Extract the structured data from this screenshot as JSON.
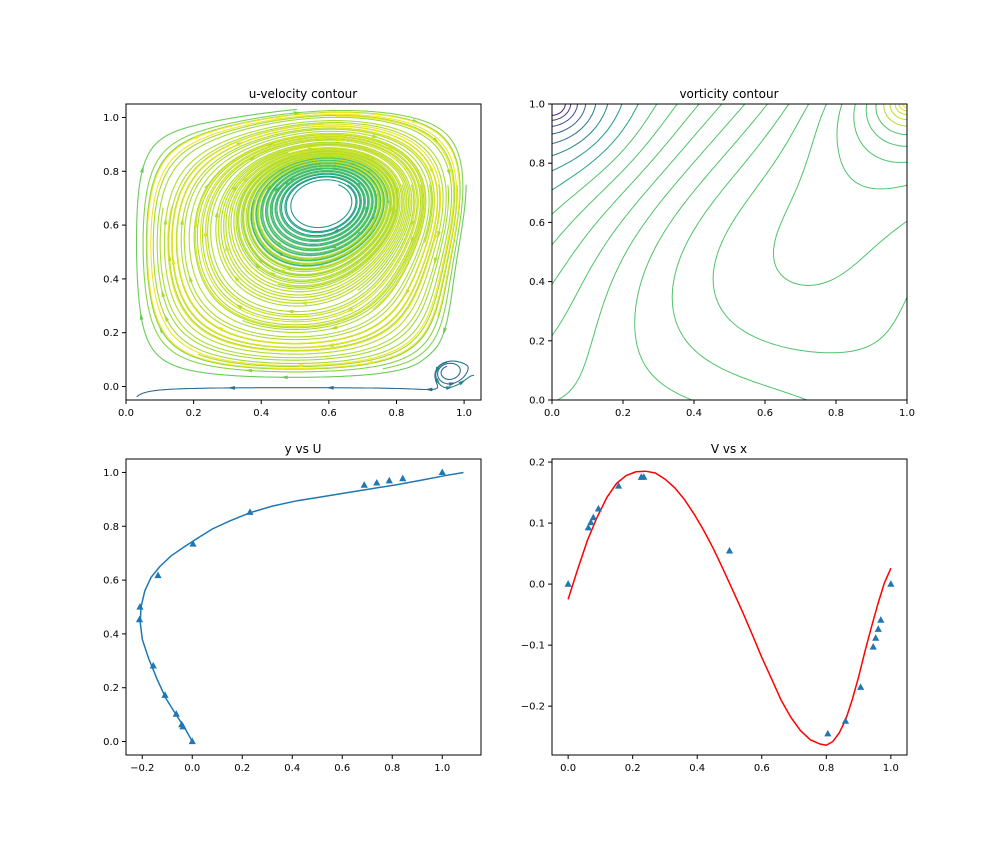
{
  "colors": {
    "viridis": [
      "#440154",
      "#482475",
      "#414487",
      "#355f8d",
      "#2a788e",
      "#21918c",
      "#22a884",
      "#44bf70",
      "#7ad151",
      "#bddf26",
      "#fde725"
    ],
    "scatter_blue": "#1f77b4",
    "line_blue": "#1f77b4",
    "fit_red": "#ff0000",
    "vorticity_green": "#5ec962"
  },
  "chart_data": [
    {
      "type": "streamplot",
      "title": "u-velocity contour",
      "xlabel": "",
      "ylabel": "",
      "xlim": [
        0,
        1.05
      ],
      "ylim": [
        -0.05,
        1.05
      ],
      "xticks": [
        "0.0",
        "0.2",
        "0.4",
        "0.6",
        "0.8",
        "1.0"
      ],
      "yticks": [
        "0.0",
        "0.2",
        "0.4",
        "0.6",
        "0.8",
        "1.0"
      ],
      "vortex_center": [
        0.62,
        0.75
      ],
      "secondary_vortex": [
        0.95,
        0.06
      ]
    },
    {
      "type": "contour",
      "title": "vorticity contour",
      "xlabel": "",
      "ylabel": "",
      "xlim": [
        0,
        1
      ],
      "ylim": [
        0,
        1
      ],
      "xticks": [
        "0.0",
        "0.2",
        "0.4",
        "0.6",
        "0.8",
        "1.0"
      ],
      "yticks": [
        "0.0",
        "0.2",
        "0.4",
        "0.6",
        "0.8",
        "1.0"
      ]
    },
    {
      "type": "line",
      "title": "y vs U",
      "xlabel": "",
      "ylabel": "",
      "xlim": [
        -0.265,
        1.155
      ],
      "ylim": [
        -0.05,
        1.05
      ],
      "xticks": [
        "−0.2",
        "0.0",
        "0.2",
        "0.4",
        "0.6",
        "0.8",
        "1.0"
      ],
      "yticks": [
        "0.0",
        "0.2",
        "0.4",
        "0.6",
        "0.8",
        "1.0"
      ],
      "series": [
        {
          "kind": "line",
          "x": [
            0.0,
            -0.03,
            -0.065,
            -0.105,
            -0.14,
            -0.175,
            -0.2,
            -0.208,
            -0.205,
            -0.19,
            -0.165,
            -0.13,
            -0.085,
            -0.03,
            0.02,
            0.08,
            0.15,
            0.23,
            0.32,
            0.42,
            0.52,
            0.62,
            0.72,
            0.82,
            0.92,
            1.01,
            1.085
          ],
          "y": [
            0.0,
            0.05,
            0.1,
            0.16,
            0.23,
            0.31,
            0.38,
            0.44,
            0.5,
            0.56,
            0.61,
            0.65,
            0.69,
            0.725,
            0.755,
            0.79,
            0.82,
            0.85,
            0.875,
            0.895,
            0.91,
            0.925,
            0.94,
            0.955,
            0.972,
            0.988,
            1.0
          ]
        },
        {
          "kind": "scatter",
          "x": [
            0.0,
            -0.037,
            -0.042,
            -0.064,
            -0.109,
            -0.156,
            -0.211,
            -0.209,
            -0.137,
            0.003,
            0.231,
            0.688,
            0.738,
            0.788,
            0.842,
            1.0
          ],
          "y": [
            0.0,
            0.055,
            0.063,
            0.102,
            0.172,
            0.281,
            0.453,
            0.5,
            0.617,
            0.734,
            0.852,
            0.953,
            0.961,
            0.969,
            0.977,
            1.0
          ]
        }
      ]
    },
    {
      "type": "line",
      "title": "V vs x",
      "xlabel": "",
      "ylabel": "",
      "xlim": [
        -0.05,
        1.05
      ],
      "ylim": [
        -0.28,
        0.205
      ],
      "xticks": [
        "0.0",
        "0.2",
        "0.4",
        "0.6",
        "0.8",
        "1.0"
      ],
      "yticks": [
        "−0.2",
        "−0.1",
        "0.0",
        "0.1",
        "0.2"
      ],
      "series": [
        {
          "kind": "line",
          "x": [
            0.0,
            0.03,
            0.06,
            0.09,
            0.12,
            0.15,
            0.18,
            0.21,
            0.24,
            0.27,
            0.3,
            0.33,
            0.36,
            0.39,
            0.42,
            0.45,
            0.48,
            0.51,
            0.54,
            0.57,
            0.6,
            0.63,
            0.66,
            0.69,
            0.72,
            0.75,
            0.78,
            0.8,
            0.82,
            0.84,
            0.86,
            0.88,
            0.9,
            0.92,
            0.94,
            0.96,
            0.98,
            1.0
          ],
          "y": [
            -0.025,
            0.025,
            0.072,
            0.11,
            0.142,
            0.165,
            0.178,
            0.184,
            0.185,
            0.182,
            0.172,
            0.158,
            0.139,
            0.115,
            0.088,
            0.058,
            0.025,
            -0.01,
            -0.045,
            -0.082,
            -0.12,
            -0.155,
            -0.19,
            -0.218,
            -0.24,
            -0.255,
            -0.262,
            -0.264,
            -0.258,
            -0.244,
            -0.222,
            -0.19,
            -0.152,
            -0.11,
            -0.07,
            -0.032,
            0.002,
            0.026
          ]
        },
        {
          "kind": "scatter",
          "x": [
            0.0,
            0.0625,
            0.0703,
            0.0781,
            0.0938,
            0.1563,
            0.2266,
            0.2344,
            0.5,
            0.8047,
            0.8594,
            0.9063,
            0.9453,
            0.9531,
            0.9609,
            0.9688,
            1.0
          ],
          "y": [
            0.0,
            0.0923,
            0.1009,
            0.1089,
            0.1232,
            0.1608,
            0.1751,
            0.1753,
            0.0545,
            -0.2453,
            -0.2245,
            -0.1691,
            -0.1031,
            -0.0886,
            -0.0739,
            -0.0591,
            0.0
          ]
        }
      ]
    }
  ]
}
